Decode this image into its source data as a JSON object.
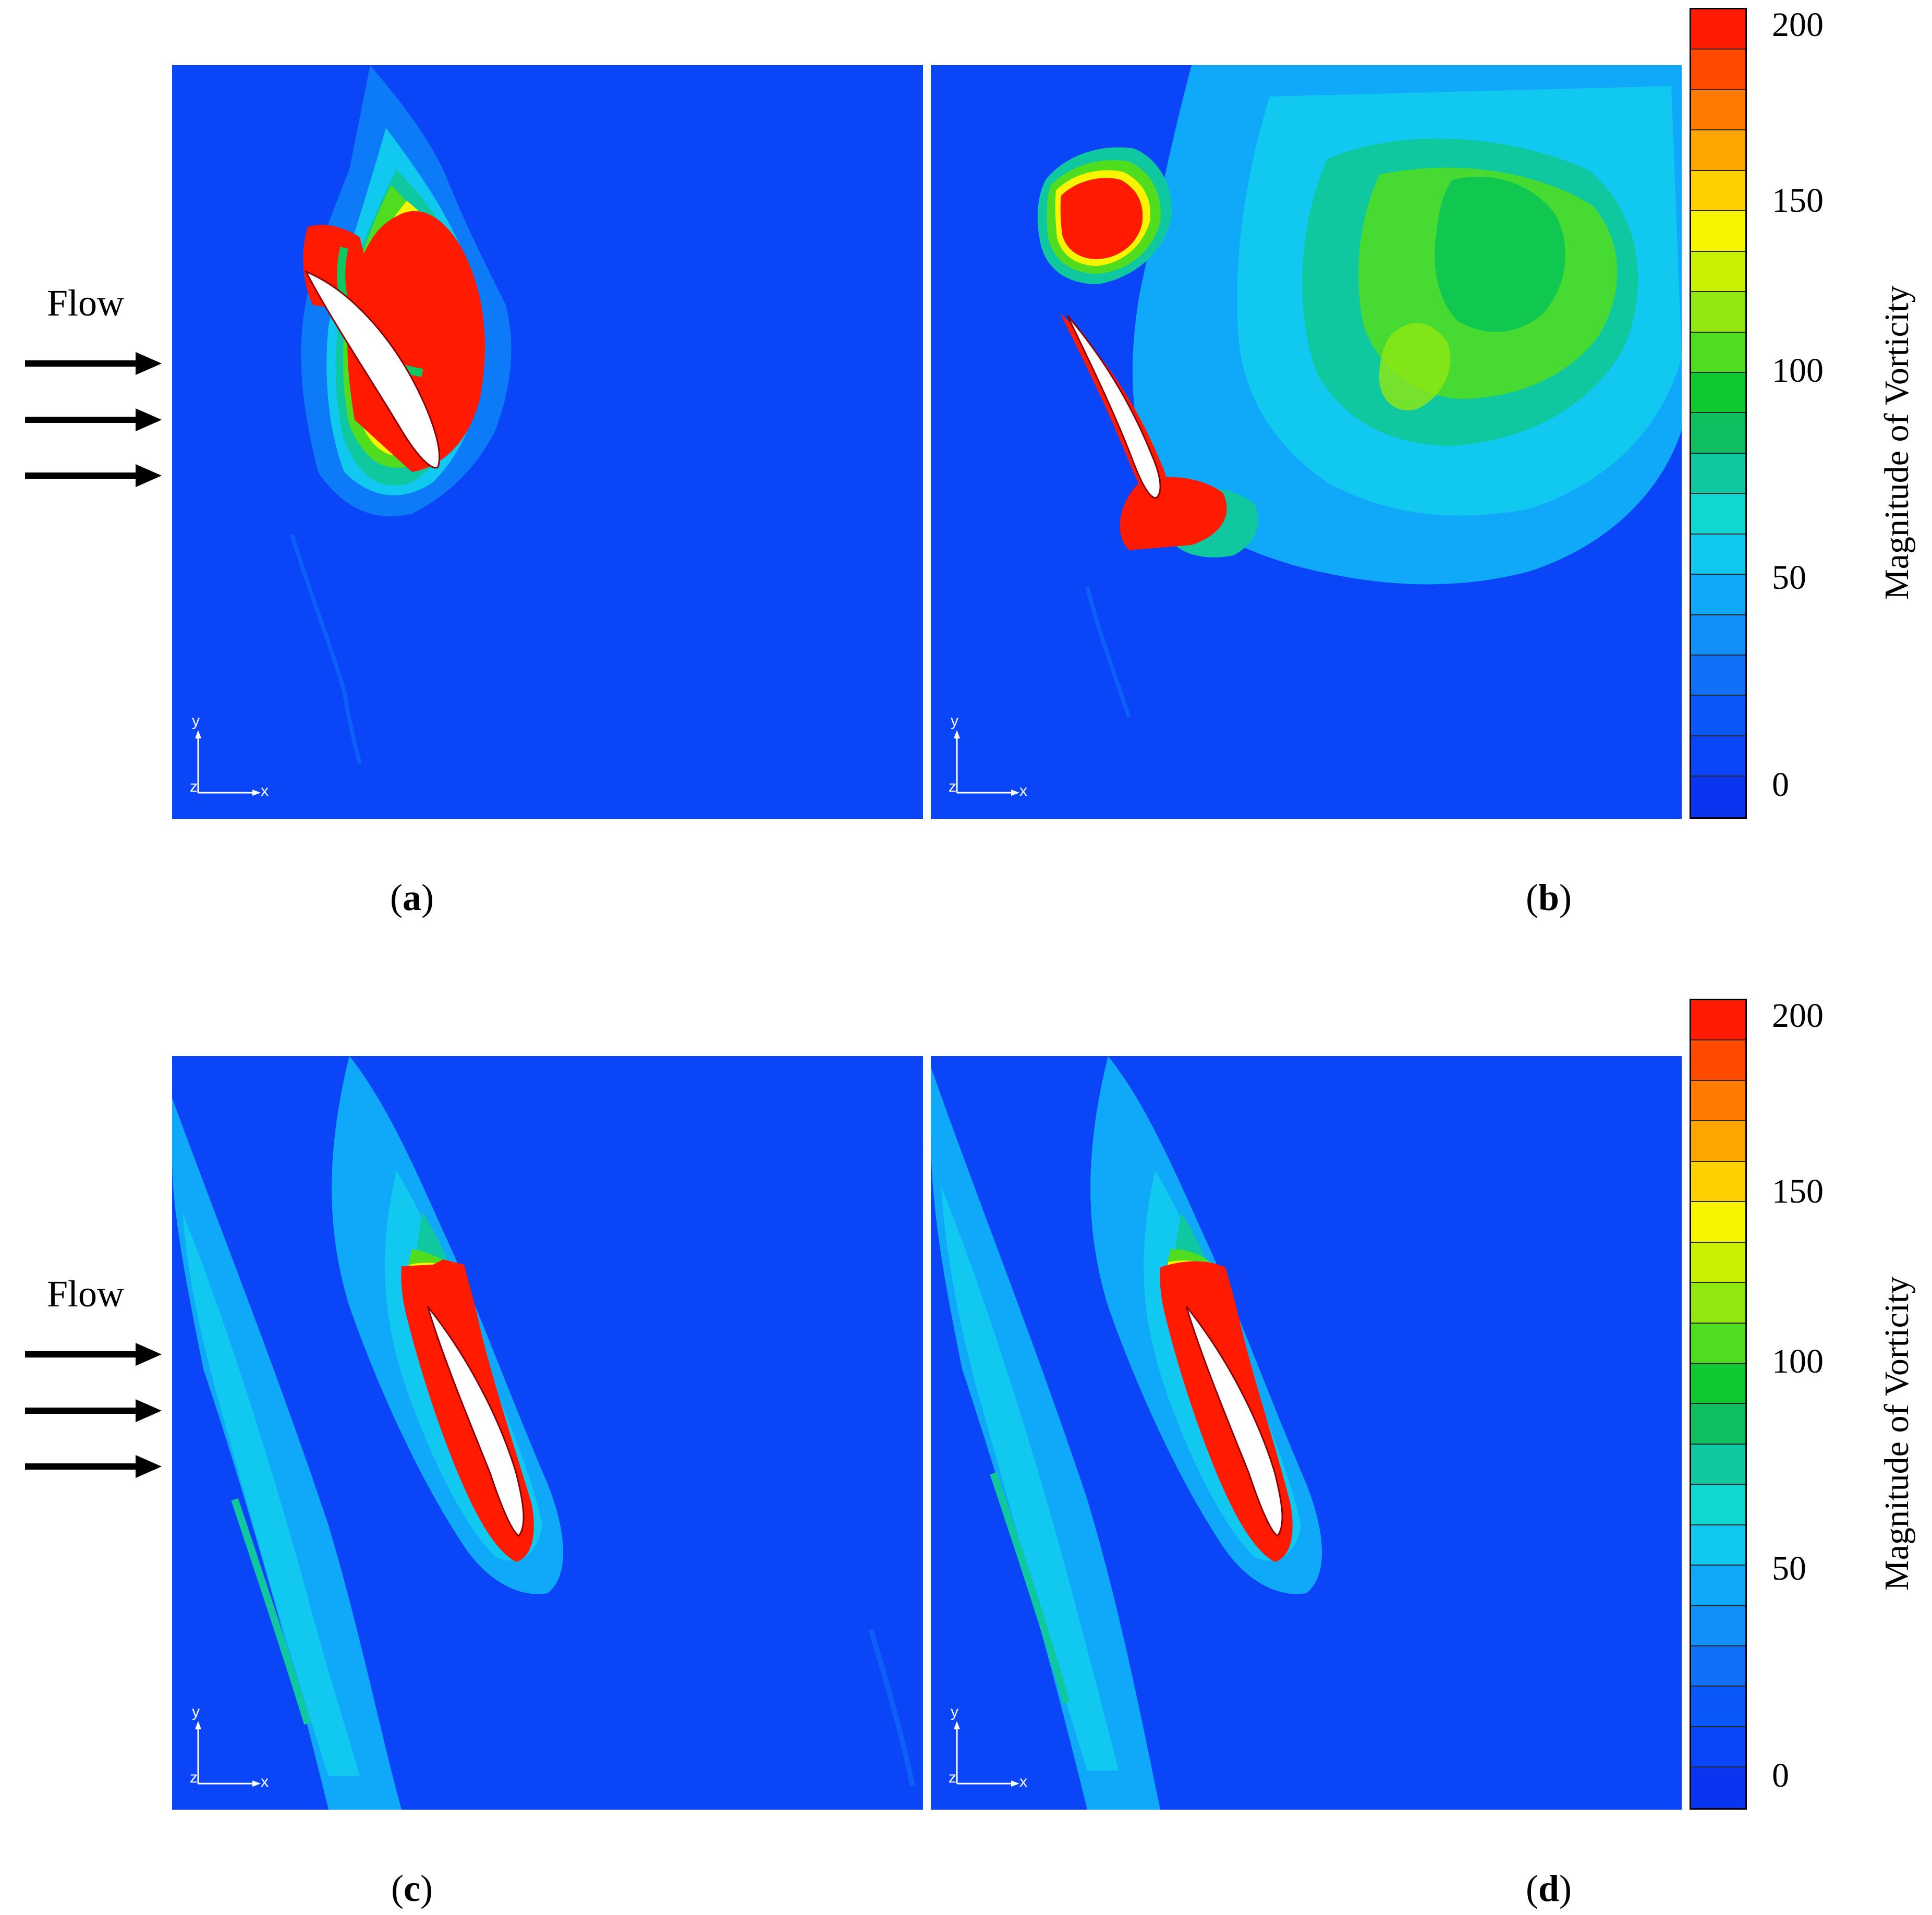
{
  "panels": [
    {
      "id": "a",
      "caption_letter": "a"
    },
    {
      "id": "b",
      "caption_letter": "b"
    },
    {
      "id": "c",
      "caption_letter": "c"
    },
    {
      "id": "d",
      "caption_letter": "d"
    }
  ],
  "flow_label": "Flow",
  "axis_labels": {
    "y": "y",
    "x": "x",
    "z": "z"
  },
  "colorbar": {
    "title": "Magnitude of Vorticity",
    "ticks": [
      "200",
      "150",
      "100",
      "50",
      "0"
    ],
    "colors": [
      "#ff1a00",
      "#ff4a00",
      "#ff7a00",
      "#ffa500",
      "#ffd000",
      "#f8f400",
      "#c8f000",
      "#90e810",
      "#50dd20",
      "#10c830",
      "#10c060",
      "#10c8a0",
      "#10d8d0",
      "#10c8f0",
      "#10a8f8",
      "#1090f8",
      "#1070f8",
      "#0a58f8",
      "#0a45f8",
      "#0a35f0"
    ]
  },
  "colors": {
    "background": "#0a45f8",
    "high": "#ff1a00",
    "airfoil": "#ffffff"
  }
}
